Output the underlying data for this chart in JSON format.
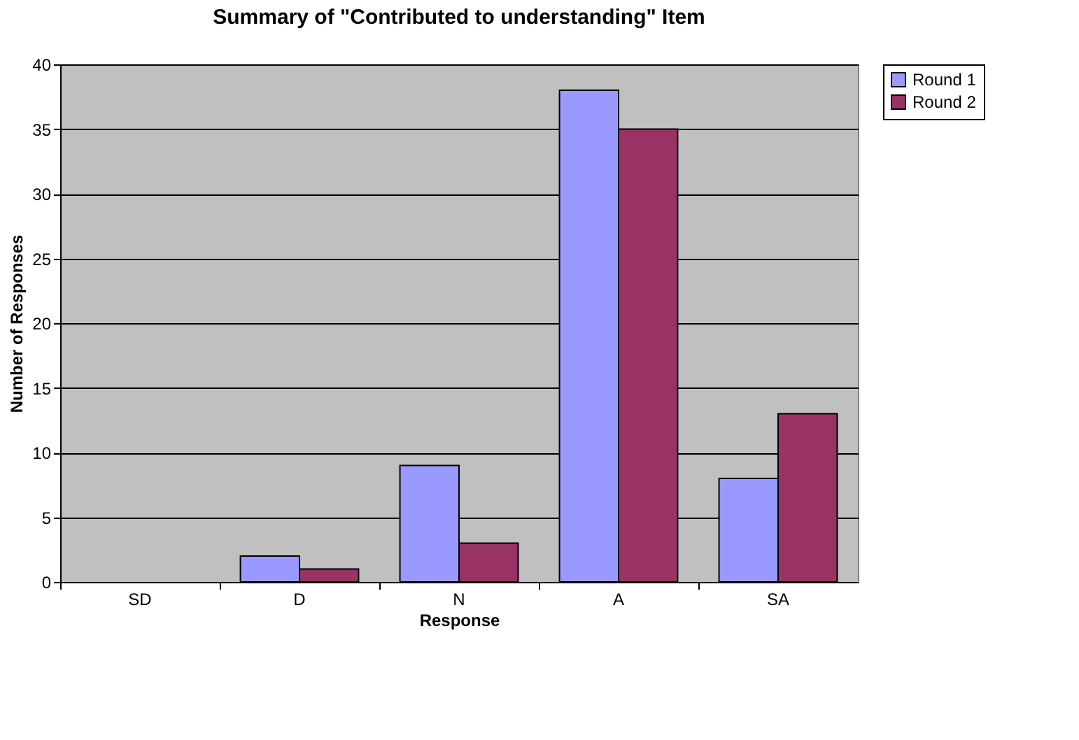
{
  "chart_data": {
    "type": "bar",
    "title": "Summary of \"Contributed to understanding\" Item",
    "xlabel": "Response",
    "ylabel": "Number of Responses",
    "categories": [
      "SD",
      "D",
      "N",
      "A",
      "SA"
    ],
    "series": [
      {
        "name": "Round 1",
        "color": "#9999ff",
        "values": [
          0,
          2,
          9,
          38,
          8
        ]
      },
      {
        "name": "Round 2",
        "color": "#993366",
        "values": [
          0,
          1,
          3,
          35,
          13
        ]
      }
    ],
    "ylim": [
      0,
      40
    ],
    "yticks": [
      0,
      5,
      10,
      15,
      20,
      25,
      30,
      35,
      40
    ],
    "grid": "y",
    "legend": "right"
  }
}
